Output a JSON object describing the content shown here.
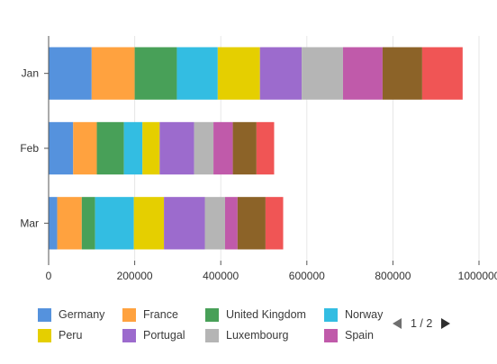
{
  "chart_data": {
    "type": "bar",
    "orientation": "horizontal",
    "stacked": true,
    "categories": [
      "Jan",
      "Feb",
      "Mar"
    ],
    "series": [
      {
        "name": "Germany",
        "color": "#5592dd",
        "values": [
          100000,
          57000,
          20000
        ]
      },
      {
        "name": "France",
        "color": "#ffa23f",
        "values": [
          100000,
          55000,
          57000
        ]
      },
      {
        "name": "United Kingdom",
        "color": "#48a058",
        "values": [
          98000,
          63000,
          31000
        ]
      },
      {
        "name": "Norway",
        "color": "#33bde2",
        "values": [
          95000,
          43000,
          90000
        ]
      },
      {
        "name": "Peru",
        "color": "#e5cf00",
        "values": [
          98000,
          40000,
          70000
        ]
      },
      {
        "name": "Portugal",
        "color": "#9c6bcd",
        "values": [
          97000,
          80000,
          95000
        ]
      },
      {
        "name": "Luxembourg",
        "color": "#b5b5b5",
        "values": [
          96000,
          45000,
          47000
        ]
      },
      {
        "name": "Spain",
        "color": "#c05aaa",
        "values": [
          92000,
          45000,
          29000
        ]
      },
      {
        "name": "",
        "color": "#8c6328",
        "values": [
          92000,
          55000,
          65000
        ]
      },
      {
        "name": "",
        "color": "#f05555",
        "values": [
          94000,
          41000,
          41000
        ]
      }
    ],
    "xlim": [
      0,
      1000000
    ],
    "xticks": [
      "0",
      "200000",
      "400000",
      "600000",
      "800000",
      "1000000"
    ],
    "xtick_values": [
      0,
      200000,
      400000,
      600000,
      800000,
      1000000
    ],
    "grid": true,
    "legend_position": "bottom"
  },
  "legend_pager": {
    "text": "1 / 2"
  }
}
